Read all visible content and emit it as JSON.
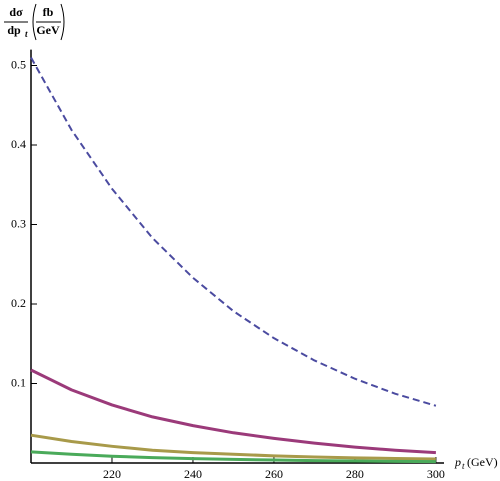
{
  "chart_data": {
    "type": "line",
    "ylabel": {
      "numerator": "dσ",
      "denominator": "dp",
      "subscript": "t",
      "unit_numerator": "fb",
      "unit_denominator": "GeV"
    },
    "xlabel": {
      "text": "p",
      "subscript": "t",
      "unit": "(GeV)"
    },
    "x": [
      200,
      210,
      220,
      230,
      240,
      250,
      260,
      270,
      280,
      290,
      300
    ],
    "series": [
      {
        "color": "#4b4ba0",
        "dash": true,
        "values": [
          0.51,
          0.419,
          0.345,
          0.283,
          0.233,
          0.191,
          0.157,
          0.129,
          0.106,
          0.087,
          0.072
        ]
      },
      {
        "color": "#9b3a7a",
        "dash": false,
        "values": [
          0.117,
          0.092,
          0.073,
          0.058,
          0.047,
          0.038,
          0.031,
          0.025,
          0.02,
          0.016,
          0.013
        ]
      },
      {
        "color": "#a89a4a",
        "dash": false,
        "values": [
          0.035,
          0.027,
          0.021,
          0.016,
          0.013,
          0.011,
          0.009,
          0.0075,
          0.0065,
          0.0057,
          0.005
        ]
      },
      {
        "color": "#4aaa5a",
        "dash": false,
        "values": [
          0.014,
          0.011,
          0.0085,
          0.0068,
          0.0055,
          0.0045,
          0.0037,
          0.003,
          0.0025,
          0.0021,
          0.0018
        ]
      }
    ],
    "xlim": [
      200,
      302
    ],
    "ylim": [
      0,
      0.52
    ],
    "xticks": [
      220,
      240,
      260,
      280,
      300
    ],
    "yticks": [
      0.1,
      0.2,
      0.3,
      0.4,
      0.5
    ]
  }
}
